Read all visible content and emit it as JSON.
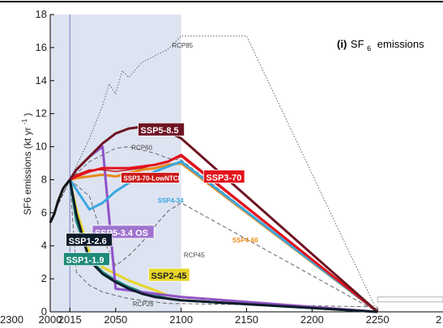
{
  "chart_data": {
    "type": "line",
    "title": "(i) SF6 emissions",
    "title_parts": {
      "panel": "(i)",
      "species": "SF",
      "sub": "6",
      "word": "emissions"
    },
    "ylabel": "SF6 emissions (kt yr⁻¹)",
    "ylabel_parts": {
      "main": "SF6 emissions (kt yr",
      "sup": "-1",
      "close": ")"
    },
    "xlim": [
      2000,
      2300
    ],
    "ylim": [
      0,
      18
    ],
    "xticks": [
      "2000",
      "2015",
      "2050",
      "2100",
      "2150",
      "2200",
      "2250"
    ],
    "xtick_values": [
      2000,
      2015,
      2050,
      2100,
      2150,
      2200,
      2250
    ],
    "left_panel_tick": "2300",
    "right_panel_tick": "2",
    "yticks": [
      0,
      2,
      4,
      6,
      8,
      10,
      12,
      14,
      16,
      18
    ],
    "ytick_labels": [
      "0",
      "2",
      "4",
      "6",
      "8",
      "10",
      "12",
      "14",
      "16",
      "18"
    ],
    "grid": false,
    "shaded_period": [
      2000,
      2100
    ],
    "shade_color": "#dde3f1",
    "vline_year": 2015,
    "historical": {
      "x": [
        2000,
        2003,
        2006,
        2010,
        2015
      ],
      "y": [
        5.4,
        5.9,
        6.7,
        7.5,
        8.0
      ],
      "color": "#111111"
    },
    "series": [
      {
        "name": "SSP5-8.5",
        "color": "#6e1423",
        "label_bg": "#6e1423",
        "label_fg": "#ffffff",
        "width": 3,
        "x": [
          2015,
          2020,
          2030,
          2040,
          2050,
          2060,
          2070,
          2080,
          2090,
          2100,
          2250
        ],
        "y": [
          8.0,
          8.6,
          9.4,
          10.2,
          10.8,
          11.1,
          11.2,
          11.1,
          10.9,
          10.5,
          0
        ]
      },
      {
        "name": "SSP3-70",
        "color": "#e3121b",
        "label_bg": "#e3121b",
        "label_fg": "#ffffff",
        "width": 3,
        "x": [
          2015,
          2020,
          2030,
          2040,
          2050,
          2060,
          2070,
          2080,
          2090,
          2100,
          2250
        ],
        "y": [
          8.0,
          8.2,
          8.5,
          8.7,
          8.7,
          8.7,
          8.8,
          8.9,
          9.1,
          9.5,
          0
        ]
      },
      {
        "name": "SSP3-70-LowNTCF",
        "color": "#cc1a1a",
        "label_bg": "#cc1a1a",
        "label_fg": "#ffffff",
        "width": 1.5,
        "x": [
          2015,
          2020,
          2030,
          2040,
          2050,
          2060,
          2070,
          2080,
          2090,
          2100,
          2250
        ],
        "y": [
          8.0,
          8.3,
          8.6,
          8.6,
          8.5,
          8.6,
          8.7,
          8.9,
          9.1,
          9.4,
          0
        ]
      },
      {
        "name": "SSP4-34",
        "color": "#39a7e0",
        "label_bg": null,
        "label_fg": "#39a7e0",
        "width": 3,
        "x": [
          2015,
          2030,
          2040,
          2050,
          2060,
          2070,
          2080,
          2090,
          2100,
          2250
        ],
        "y": [
          8.0,
          6.2,
          6.6,
          7.3,
          7.8,
          8.1,
          8.5,
          8.8,
          9.1,
          0
        ]
      },
      {
        "name": "SSP4-60",
        "color": "#e88a1a",
        "label_bg": null,
        "label_fg": "#e88a1a",
        "width": 3,
        "x": [
          2015,
          2020,
          2030,
          2040,
          2050,
          2060,
          2070,
          2080,
          2090,
          2100,
          2250
        ],
        "y": [
          8.0,
          8.1,
          8.2,
          8.3,
          8.2,
          8.4,
          8.6,
          8.7,
          8.9,
          9.0,
          0
        ]
      },
      {
        "name": "SSP5-3.4 OS",
        "color": "#8e53c9",
        "label_bg": "#9f74cf",
        "label_fg": "#ffffff",
        "width": 3,
        "x": [
          2015,
          2020,
          2030,
          2040,
          2050,
          2060,
          2070,
          2080,
          2090,
          2100,
          2250
        ],
        "y": [
          8.0,
          8.6,
          9.4,
          10.0,
          1.4,
          1.3,
          1.2,
          1.1,
          1.0,
          0.9,
          0
        ]
      },
      {
        "name": "SSP2-45",
        "color": "#e6d628",
        "label_bg": "#e6d628",
        "label_fg": "#222222",
        "width": 3,
        "x": [
          2015,
          2020,
          2030,
          2040,
          2050,
          2060,
          2070,
          2080,
          2090,
          2100,
          2250
        ],
        "y": [
          8.0,
          6.2,
          3.6,
          2.7,
          2.3,
          1.9,
          1.6,
          1.3,
          1.0,
          0.9,
          0
        ]
      },
      {
        "name": "SSP1-1.9",
        "color": "#1f8a7a",
        "label_bg": "#1f8a7a",
        "label_fg": "#ffffff",
        "width": 3,
        "x": [
          2015,
          2020,
          2030,
          2040,
          2050,
          2060,
          2070,
          2080,
          2090,
          2100,
          2250
        ],
        "y": [
          8.0,
          5.5,
          3.2,
          2.4,
          1.9,
          1.5,
          1.2,
          1.0,
          0.8,
          0.7,
          0
        ]
      },
      {
        "name": "SSP1-2.6",
        "color": "#0d1b2a",
        "label_bg": "#0d1b2a",
        "label_fg": "#ffffff",
        "width": 3,
        "x": [
          2015,
          2020,
          2030,
          2040,
          2050,
          2060,
          2070,
          2080,
          2090,
          2100,
          2250
        ],
        "y": [
          8.0,
          5.9,
          3.1,
          2.3,
          1.8,
          1.4,
          1.1,
          0.9,
          0.8,
          0.7,
          0
        ]
      }
    ],
    "rcp_series": [
      {
        "name": "RCP85",
        "style": "dotted",
        "x": [
          2000,
          2015,
          2030,
          2040,
          2045,
          2050,
          2055,
          2060,
          2070,
          2080,
          2090,
          2100,
          2150,
          2250
        ],
        "y": [
          5.5,
          8.0,
          10.5,
          12.5,
          13.8,
          13.2,
          14.6,
          14.2,
          15.1,
          15.5,
          15.9,
          16.7,
          16.7,
          0
        ]
      },
      {
        "name": "RCP60",
        "style": "dashed",
        "x": [
          2000,
          2015,
          2030,
          2040,
          2050,
          2060,
          2070,
          2080,
          2090,
          2100,
          2250
        ],
        "y": [
          5.5,
          8.0,
          9.1,
          9.5,
          9.9,
          10.0,
          9.8,
          9.6,
          9.3,
          9.2,
          0
        ]
      },
      {
        "name": "RCP45",
        "style": "dashed",
        "x": [
          2000,
          2015,
          2030,
          2040,
          2050,
          2060,
          2070,
          2080,
          2090,
          2100,
          2250
        ],
        "y": [
          5.5,
          8.0,
          7.0,
          4.5,
          2.8,
          3.4,
          4.2,
          5.2,
          6.1,
          6.6,
          0
        ]
      },
      {
        "name": "RCP26",
        "style": "dashed",
        "x": [
          2000,
          2015,
          2020,
          2030,
          2040,
          2050,
          2060,
          2070,
          2080,
          2090,
          2100,
          2250
        ],
        "y": [
          5.5,
          8.0,
          2.4,
          1.6,
          1.2,
          1.0,
          0.8,
          0.7,
          0.6,
          0.5,
          0.5,
          0.3
        ]
      }
    ],
    "extended_bands": [
      {
        "y_low": 0.6,
        "y_high": 0.9,
        "from": 2250,
        "to": 2300,
        "color": "#b3b3b3"
      }
    ]
  }
}
